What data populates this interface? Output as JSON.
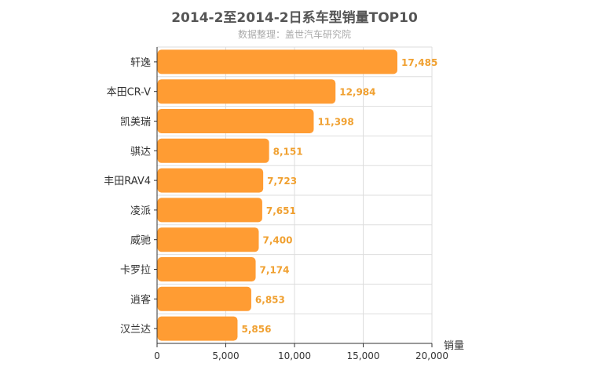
{
  "title": "2014-2至2014-2日系车型销量TOP10",
  "subtitle": "数据整理：盖世汽车研究院",
  "chart_data": {
    "type": "bar",
    "orientation": "horizontal",
    "title": "2014-2至2014-2日系车型销量TOP10",
    "subtitle": "数据整理：盖世汽车研究院",
    "xlabel": "销量",
    "ylabel": "",
    "categories": [
      "轩逸",
      "本田CR-V",
      "凯美瑞",
      "骐达",
      "丰田RAV4",
      "凌派",
      "威驰",
      "卡罗拉",
      "逍客",
      "汉兰达"
    ],
    "values": [
      17485,
      12984,
      11398,
      8151,
      7723,
      7651,
      7400,
      7174,
      6853,
      5856
    ],
    "value_labels": [
      "17,485",
      "12,984",
      "11,398",
      "8,151",
      "7,723",
      "7,651",
      "7,400",
      "7,174",
      "6,853",
      "5,856"
    ],
    "xlim": [
      0,
      20000
    ],
    "xticks": [
      0,
      5000,
      10000,
      15000,
      20000
    ],
    "xtick_labels": [
      "0",
      "5,000",
      "10,000",
      "15,000",
      "20,000"
    ],
    "grid": true,
    "colors": {
      "bar": "#ff9c33",
      "value_label": "#f0a030",
      "grid": "#dddddd",
      "axis": "#333333"
    }
  }
}
